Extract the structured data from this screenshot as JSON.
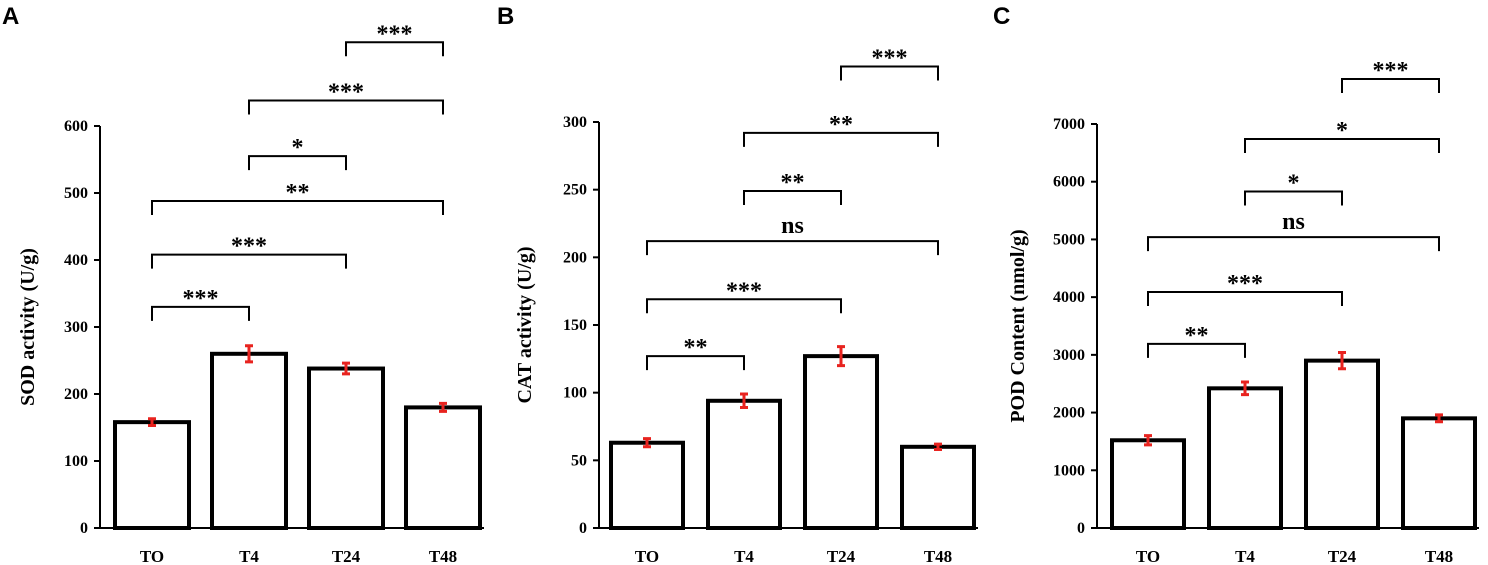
{
  "chart_data": [
    {
      "panel": "A",
      "type": "bar",
      "categories": [
        "TO",
        "T4",
        "T24",
        "T48"
      ],
      "values": [
        158,
        260,
        238,
        180
      ],
      "errors": [
        5,
        12,
        8,
        6
      ],
      "ylabel": "SOD activity (U/g)",
      "ylim": [
        0,
        600
      ],
      "yticks": [
        0,
        100,
        200,
        300,
        400,
        500,
        600
      ],
      "significance": [
        {
          "from": 0,
          "to": 1,
          "y": 330,
          "label": "***"
        },
        {
          "from": 0,
          "to": 2,
          "y": 408,
          "label": "***"
        },
        {
          "from": 0,
          "to": 3,
          "y": 488,
          "label": "**"
        },
        {
          "from": 1,
          "to": 2,
          "y": 555,
          "label": "*"
        },
        {
          "from": 1,
          "to": 3,
          "y": 638,
          "label": "***"
        },
        {
          "from": 2,
          "to": 3,
          "y": 725,
          "label": "***"
        }
      ]
    },
    {
      "panel": "B",
      "type": "bar",
      "categories": [
        "TO",
        "T4",
        "T24",
        "T48"
      ],
      "values": [
        63,
        94,
        127,
        60
      ],
      "errors": [
        3,
        5,
        7,
        2
      ],
      "ylabel": "CAT activity (U/g)",
      "ylim": [
        0,
        300
      ],
      "yticks": [
        0,
        50,
        100,
        150,
        200,
        250,
        300
      ],
      "significance": [
        {
          "from": 0,
          "to": 1,
          "y": 127,
          "label": "**"
        },
        {
          "from": 0,
          "to": 2,
          "y": 169,
          "label": "***"
        },
        {
          "from": 0,
          "to": 3,
          "y": 212,
          "label": "ns"
        },
        {
          "from": 1,
          "to": 2,
          "y": 249,
          "label": "**"
        },
        {
          "from": 1,
          "to": 3,
          "y": 292,
          "label": "**"
        },
        {
          "from": 2,
          "to": 3,
          "y": 341,
          "label": "***"
        }
      ]
    },
    {
      "panel": "C",
      "type": "bar",
      "categories": [
        "TO",
        "T4",
        "T24",
        "T48"
      ],
      "values": [
        1520,
        2420,
        2900,
        1900
      ],
      "errors": [
        80,
        110,
        140,
        60
      ],
      "ylabel": "POD Content (nmol/g)",
      "ylim": [
        0,
        7000
      ],
      "yticks": [
        0,
        1000,
        2000,
        3000,
        4000,
        5000,
        6000,
        7000
      ],
      "significance": [
        {
          "from": 0,
          "to": 1,
          "y": 3190,
          "label": "**"
        },
        {
          "from": 0,
          "to": 2,
          "y": 4090,
          "label": "***"
        },
        {
          "from": 0,
          "to": 3,
          "y": 5040,
          "label": "ns"
        },
        {
          "from": 1,
          "to": 2,
          "y": 5830,
          "label": "*"
        },
        {
          "from": 1,
          "to": 3,
          "y": 6740,
          "label": "*"
        },
        {
          "from": 2,
          "to": 3,
          "y": 7780,
          "label": "***"
        }
      ]
    }
  ],
  "colors": {
    "bar_fill": "#ffffff",
    "bar_stroke": "#000000",
    "error_bar": "#e8231f"
  }
}
